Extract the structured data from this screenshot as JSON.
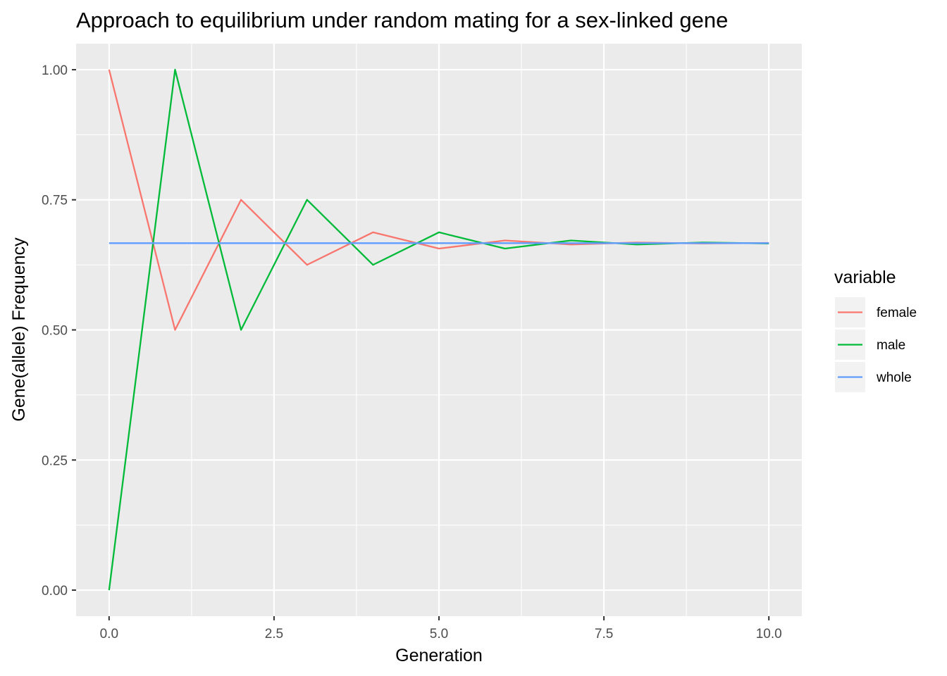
{
  "chart_data": {
    "type": "line",
    "title": "Approach to equilibrium under random mating for a sex-linked gene",
    "xlabel": "Generation",
    "ylabel": "Gene(allele) Frequency",
    "xlim": [
      -0.5,
      10.5
    ],
    "ylim": [
      -0.05,
      1.05
    ],
    "x_ticks": [
      0,
      2.5,
      5,
      7.5,
      10
    ],
    "x_tick_labels": [
      "0.0",
      "2.5",
      "5.0",
      "7.5",
      "10.0"
    ],
    "y_ticks": [
      0,
      0.25,
      0.5,
      0.75,
      1
    ],
    "y_tick_labels": [
      "0.00",
      "0.25",
      "0.50",
      "0.75",
      "1.00"
    ],
    "grid": true,
    "legend_title": "variable",
    "legend_position": "right",
    "x": [
      0,
      1,
      2,
      3,
      4,
      5,
      6,
      7,
      8,
      9,
      10
    ],
    "series": [
      {
        "name": "female",
        "color": "#F8766D",
        "values": [
          1.0,
          0.5,
          0.75,
          0.625,
          0.6875,
          0.65625,
          0.671875,
          0.6640625,
          0.66796875,
          0.666015625,
          0.6669921875
        ]
      },
      {
        "name": "male",
        "color": "#00BA38",
        "values": [
          0.0,
          1.0,
          0.5,
          0.75,
          0.625,
          0.6875,
          0.65625,
          0.671875,
          0.6640625,
          0.66796875,
          0.666015625
        ]
      },
      {
        "name": "whole",
        "color": "#619CFF",
        "values": [
          0.6667,
          0.6667,
          0.6667,
          0.6667,
          0.6667,
          0.6667,
          0.6667,
          0.6667,
          0.6667,
          0.6667,
          0.6667
        ]
      }
    ]
  }
}
